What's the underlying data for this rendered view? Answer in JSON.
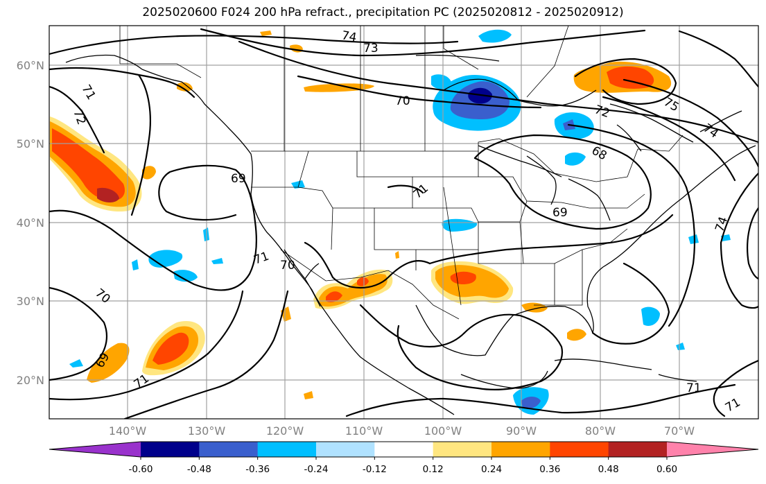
{
  "title": "2025020600 F024 200 hPa refract., precipitation PC (2025020812 - 2025020912)",
  "map": {
    "lat_labels": [
      "60°N",
      "50°N",
      "40°N",
      "30°N",
      "20°N"
    ],
    "lon_labels": [
      "140°W",
      "130°W",
      "120°W",
      "110°W",
      "100°W",
      "90°W",
      "80°W",
      "70°W"
    ],
    "contour_labels": [
      "74",
      "73",
      "71",
      "72",
      "70",
      "72",
      "75",
      "74",
      "69",
      "71",
      "68",
      "69",
      "71",
      "70",
      "70",
      "69",
      "71",
      "74",
      "71",
      "71"
    ]
  },
  "colorbar": {
    "ticks": [
      "-0.60",
      "-0.48",
      "-0.36",
      "-0.24",
      "-0.12",
      "0.12",
      "0.24",
      "0.36",
      "0.48",
      "0.60"
    ],
    "colors": [
      "#9932cc",
      "#00008b",
      "#3a5fcd",
      "#00bfff",
      "#b0e2ff",
      "#ffffff",
      "#ffe680",
      "#ffa500",
      "#ff4500",
      "#b22222",
      "#ff82ab"
    ]
  }
}
